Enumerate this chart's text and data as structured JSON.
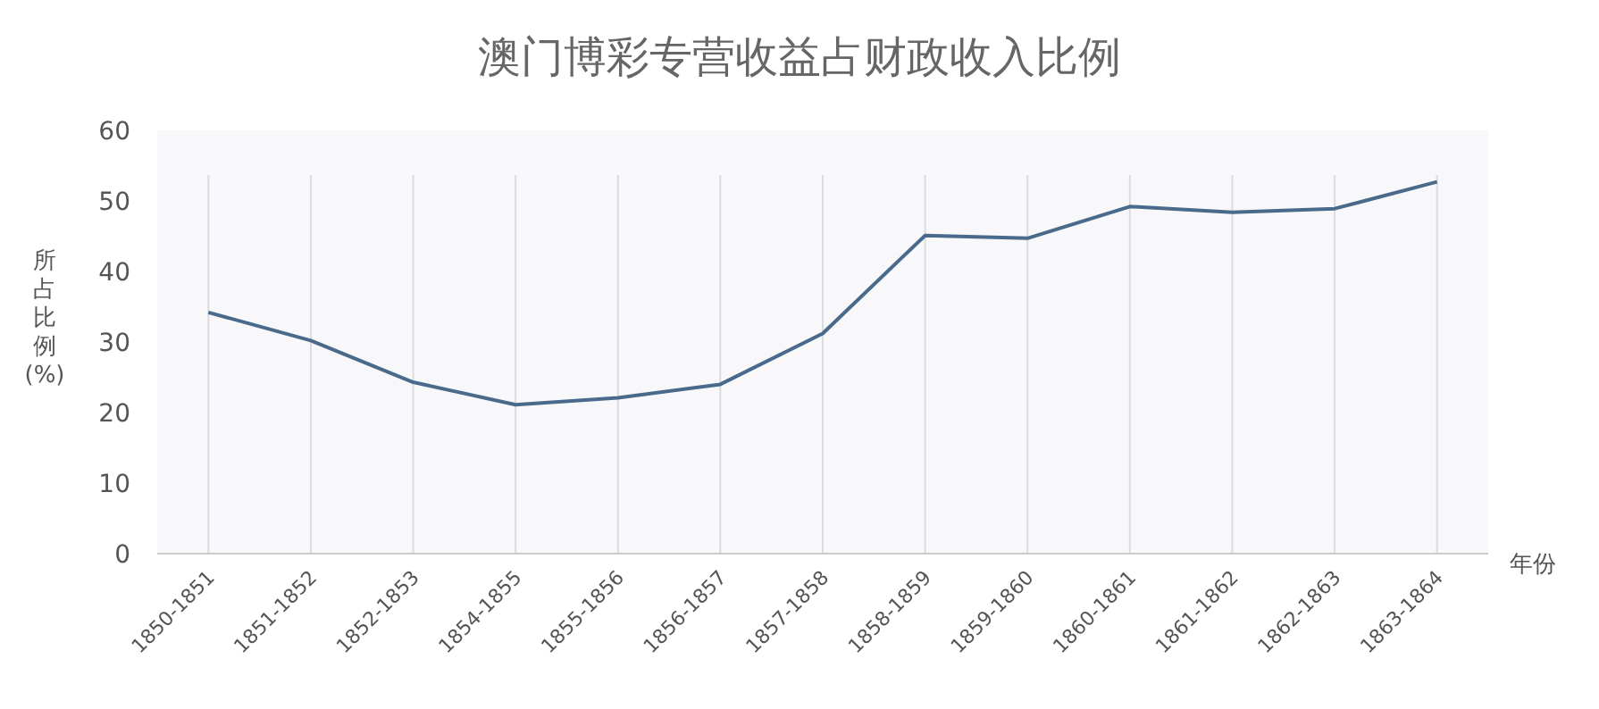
{
  "chart_data": {
    "type": "line",
    "title": "澳门博彩专营收益占财政收入比例",
    "ylabel": "所占比例(%)",
    "xlabel": "年份",
    "categories": [
      "1850-1851",
      "1851-1852",
      "1852-1853",
      "1854-1855",
      "1855-1856",
      "1856-1857",
      "1857-1858",
      "1858-1859",
      "1859-1860",
      "1860-1861",
      "1861-1862",
      "1862-1863",
      "1863-1864"
    ],
    "series": [
      {
        "color": "#4a6a8c",
        "values": [
          34.2,
          30.2,
          24.3,
          21.1,
          22.1,
          24.0,
          31.2,
          45.1,
          44.7,
          49.2,
          48.4,
          48.9,
          52.7
        ]
      }
    ],
    "ylim": [
      0,
      60
    ],
    "yticks": [
      0,
      10,
      20,
      30,
      40,
      50,
      60
    ],
    "grid": "x",
    "marker": "none"
  }
}
